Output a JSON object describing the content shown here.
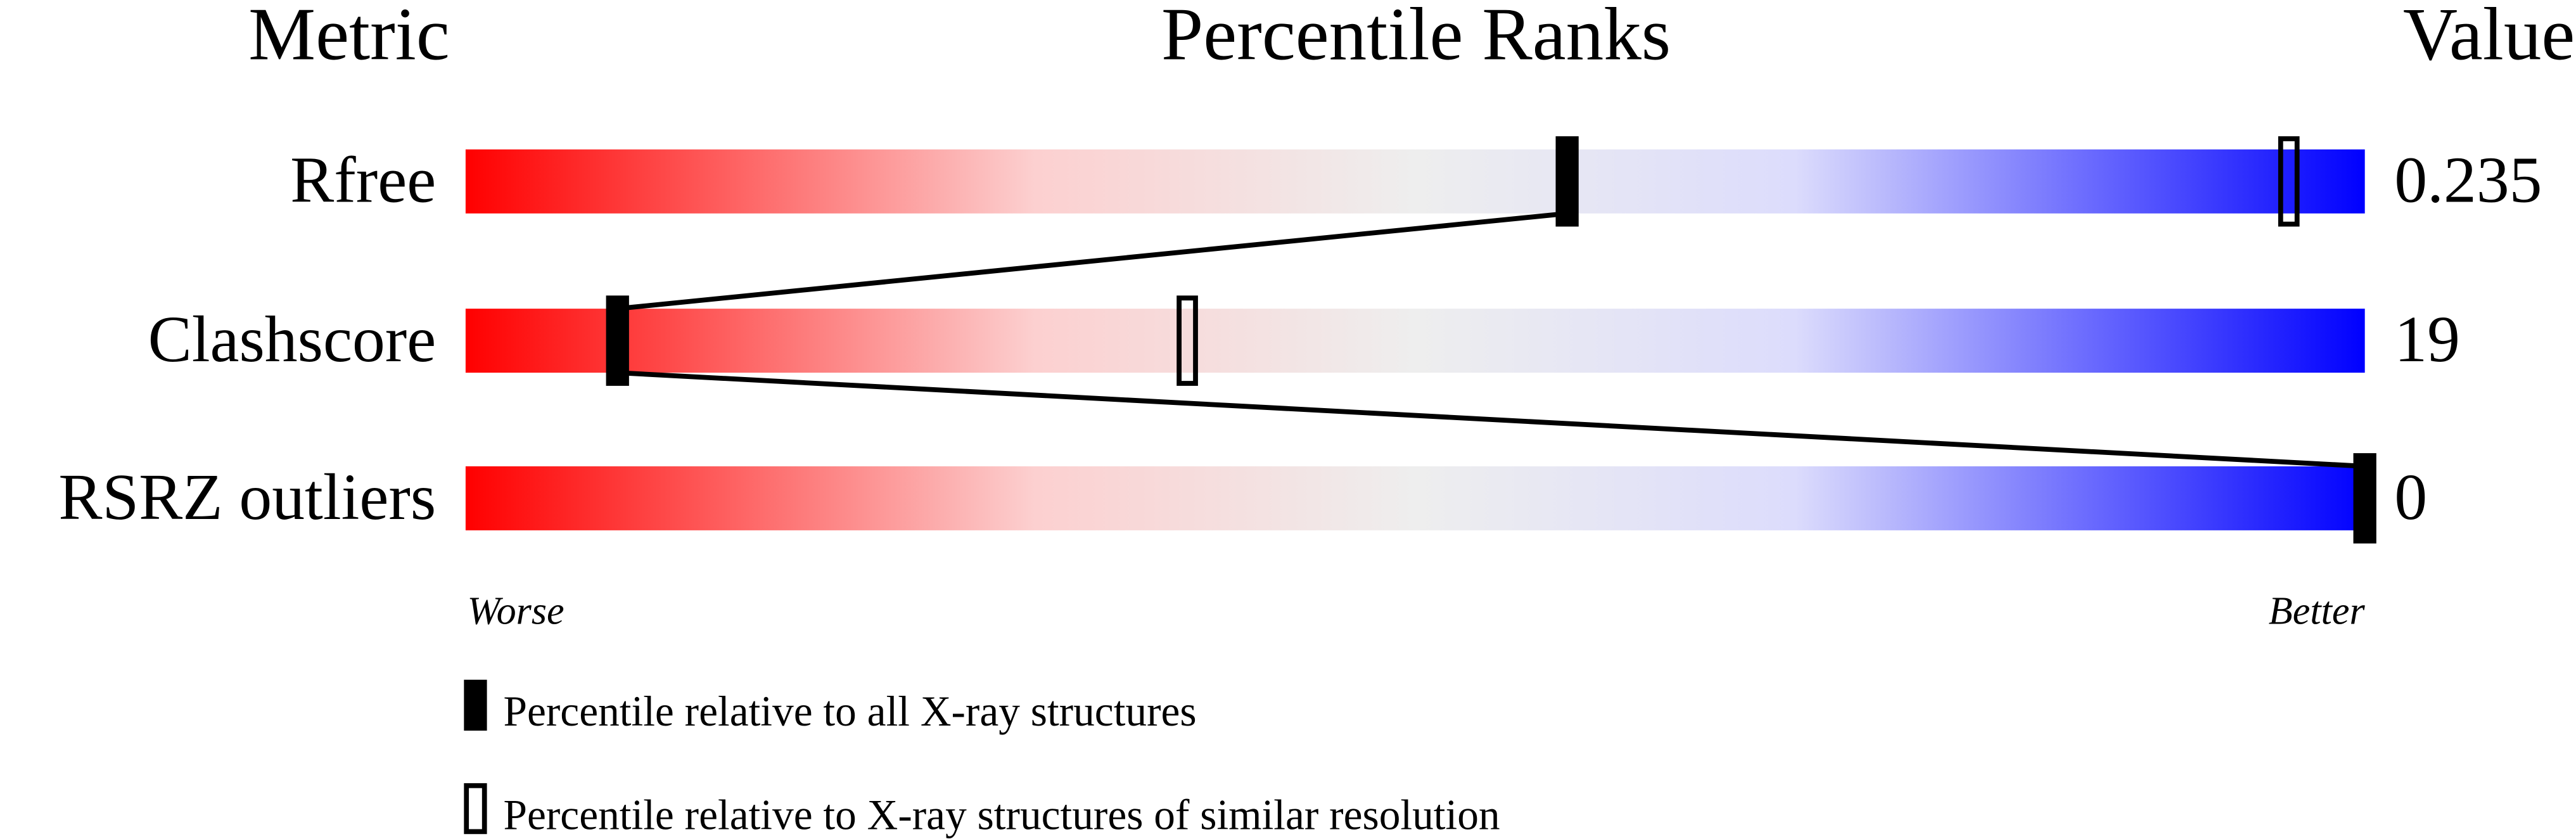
{
  "chart_data": {
    "type": "percentile-slider",
    "headers": {
      "metric": "Metric",
      "ranks": "Percentile Ranks",
      "value": "Value"
    },
    "xlim": [
      0,
      100
    ],
    "axis_labels": {
      "left": "Worse",
      "right": "Better"
    },
    "gradient_colors": [
      "#ff0000",
      "#eeeeee",
      "#0000ff"
    ],
    "rows": [
      {
        "metric": "Rfree",
        "value": "0.235",
        "percentile_all": 58,
        "percentile_similar": 96
      },
      {
        "metric": "Clashscore",
        "value": "19",
        "percentile_all": 8,
        "percentile_similar": 38
      },
      {
        "metric": "RSRZ outliers",
        "value": "0",
        "percentile_all": 100,
        "percentile_similar": null
      }
    ],
    "legend": [
      {
        "marker": "filled",
        "label": "Percentile relative to all X-ray structures"
      },
      {
        "marker": "open",
        "label": "Percentile relative to X-ray structures of similar resolution"
      }
    ]
  }
}
